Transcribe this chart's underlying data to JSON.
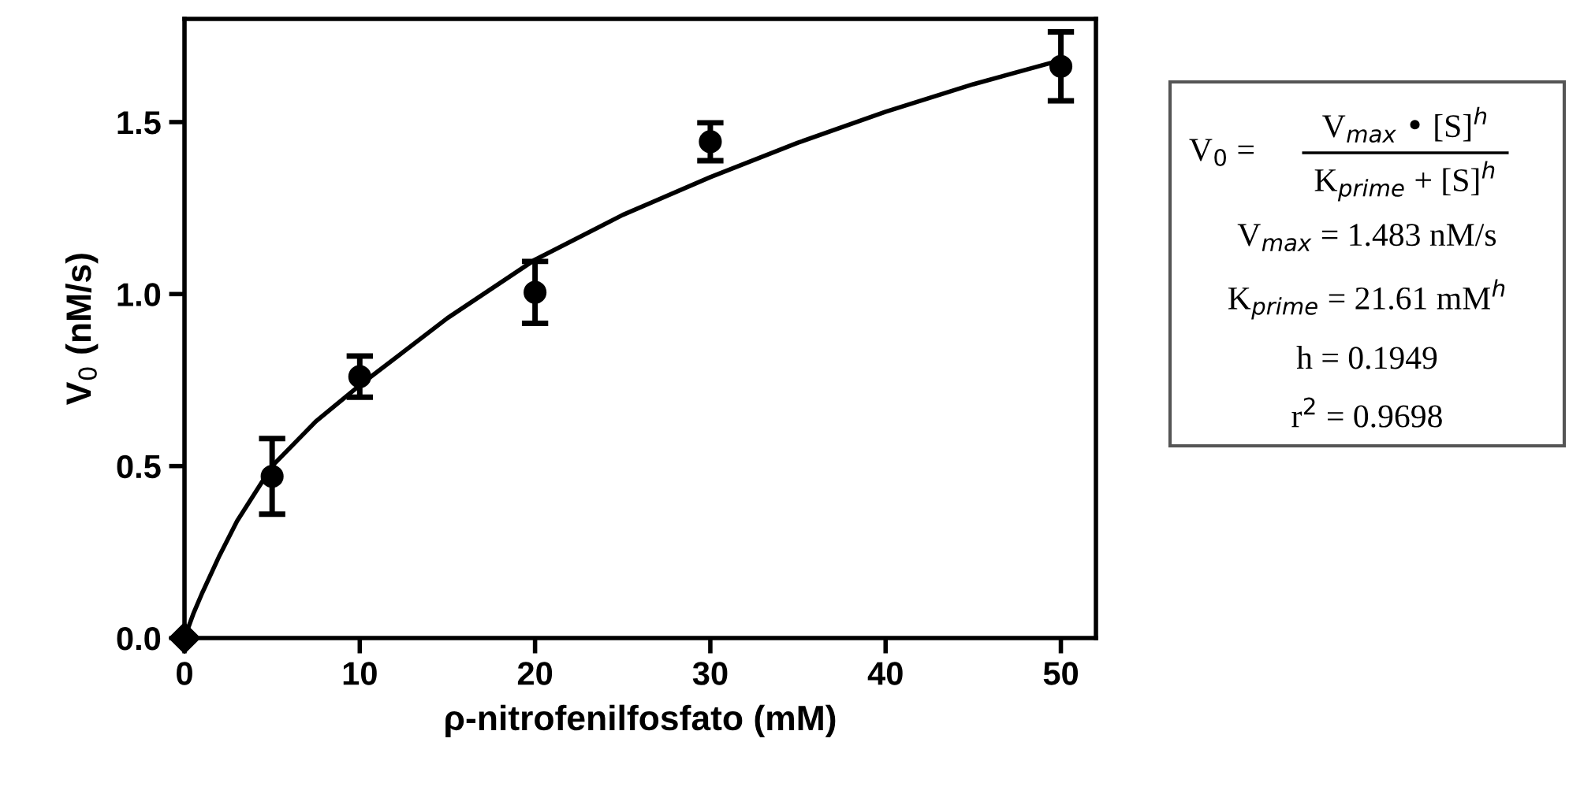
{
  "chart_data": {
    "type": "scatter",
    "xlabel": "ρ-nitrofenilfosfato (mM)",
    "ylabel": "V$_{0}$ (nM/s)",
    "xlim": [
      0,
      52
    ],
    "ylim": [
      0,
      1.8
    ],
    "xticks": [
      0,
      10,
      20,
      30,
      40,
      50
    ],
    "yticks": [
      {
        "value": 0,
        "label": "0.0"
      },
      {
        "value": 0.5,
        "label": "0.5"
      },
      {
        "value": 1,
        "label": "1.0"
      },
      {
        "value": 1.5,
        "label": "1.5"
      }
    ],
    "grid": false,
    "legend": false,
    "marker": "circle",
    "series": [
      {
        "color": "#000000",
        "x": [
          5,
          10,
          20,
          30,
          50
        ],
        "values": [
          0.47,
          0.76,
          1.005,
          1.443,
          1.662
        ],
        "errors": [
          0.11,
          0.06,
          0.09,
          0.055,
          0.1
        ]
      },
      {
        "marker": "diamond",
        "color": "#000000",
        "x": [
          0
        ],
        "values": [
          0
        ]
      },
      {
        "type": "line",
        "marker": "none",
        "color": "#000000",
        "x": [
          0,
          0.5,
          1,
          2,
          3,
          5,
          7.5,
          10,
          15,
          20,
          25,
          30,
          35,
          40,
          45,
          50
        ],
        "values": [
          0,
          0.07,
          0.13,
          0.24,
          0.34,
          0.5,
          0.63,
          0.735,
          0.93,
          1.1,
          1.23,
          1.34,
          1.44,
          1.53,
          1.61,
          1.68
        ]
      }
    ],
    "annotations": [
      "V$_{0}$ =",
      "V$_{max}$ • [S]$^{h}$",
      "K$_{prime}$ + [S]$^{h}$",
      "V$_{max}$ = 1.483 nM/s",
      "K$_{prime}$ = 21.61 mM$^{h}$",
      "h = 0.1949",
      "r$^{2}$ = 0.9698"
    ]
  }
}
